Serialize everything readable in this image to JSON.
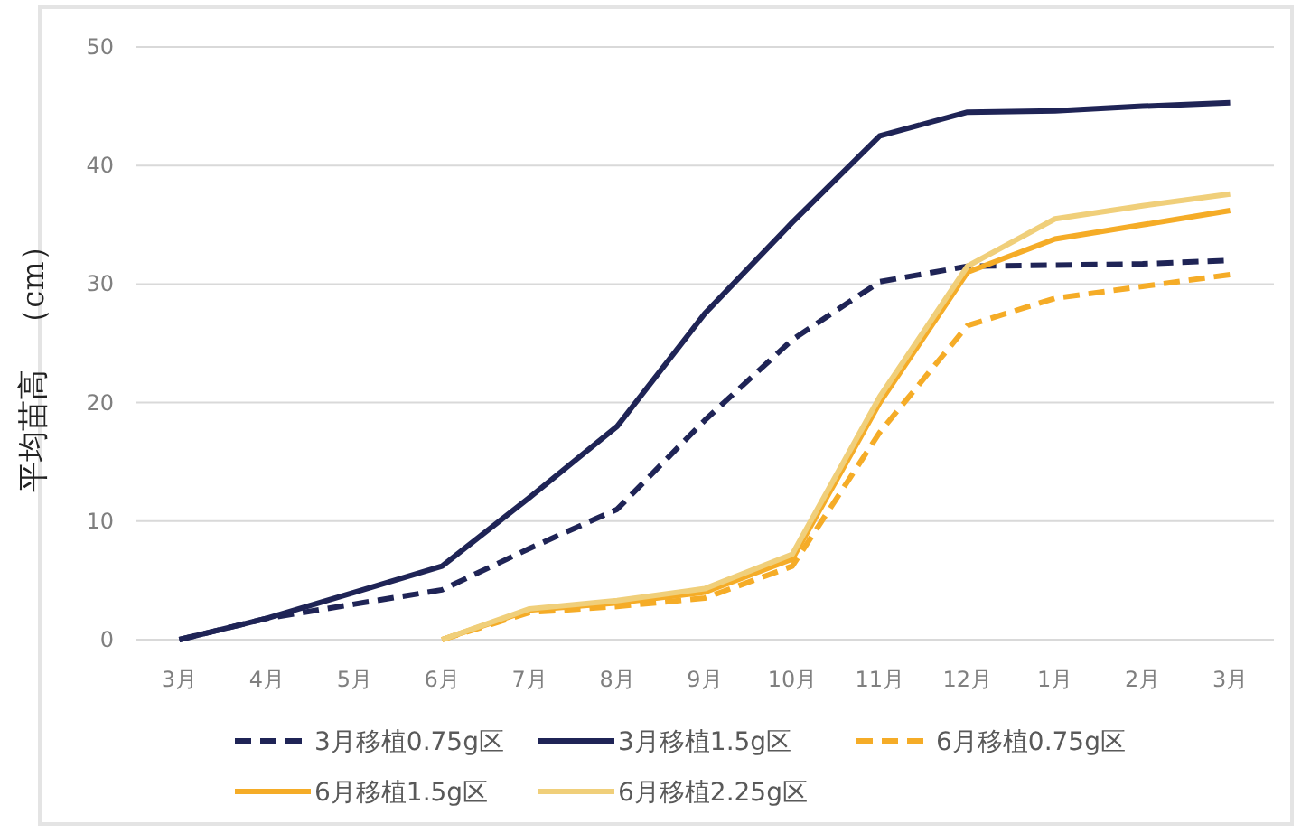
{
  "chart_data": {
    "type": "line",
    "ylabel": "平均苗高　（cm）",
    "categories": [
      "3月",
      "4月",
      "5月",
      "6月",
      "7月",
      "8月",
      "9月",
      "10月",
      "11月",
      "12月",
      "1月",
      "2月",
      "3月"
    ],
    "series": [
      {
        "name": "3月移植0.75g区",
        "color": "#1f2456",
        "line_style": "dashed",
        "values": [
          0,
          1.8,
          3,
          4.2,
          7.7,
          11,
          18.5,
          25.3,
          30.2,
          31.5,
          31.6,
          31.7,
          32
        ]
      },
      {
        "name": "3月移植1.5g区",
        "color": "#1f2456",
        "line_style": "solid",
        "values": [
          0,
          1.8,
          4,
          6.2,
          12,
          18,
          27.5,
          35.2,
          42.5,
          44.5,
          44.6,
          45,
          45.3
        ]
      },
      {
        "name": "6月移植0.75g区",
        "color": "#f5ac27",
        "line_style": "dashed",
        "values": [
          null,
          null,
          null,
          0,
          2.3,
          2.8,
          3.5,
          6.2,
          17.5,
          26.5,
          28.8,
          29.8,
          30.8
        ]
      },
      {
        "name": "6月移植1.5g区",
        "color": "#f5ac27",
        "line_style": "solid",
        "values": [
          null,
          null,
          null,
          0,
          2.5,
          3.1,
          4,
          6.8,
          20,
          31,
          33.8,
          35,
          36.2
        ]
      },
      {
        "name": "6月移植2.25g区",
        "color": "#f0cf7a",
        "line_style": "solid",
        "values": [
          null,
          null,
          null,
          0,
          2.6,
          3.3,
          4.3,
          7.2,
          20.5,
          31.5,
          35.5,
          36.6,
          37.6
        ]
      }
    ],
    "ylim": [
      0,
      50
    ],
    "yticks": [
      0,
      10,
      20,
      30,
      40,
      50
    ],
    "grid": "y",
    "legend": "bottom"
  }
}
